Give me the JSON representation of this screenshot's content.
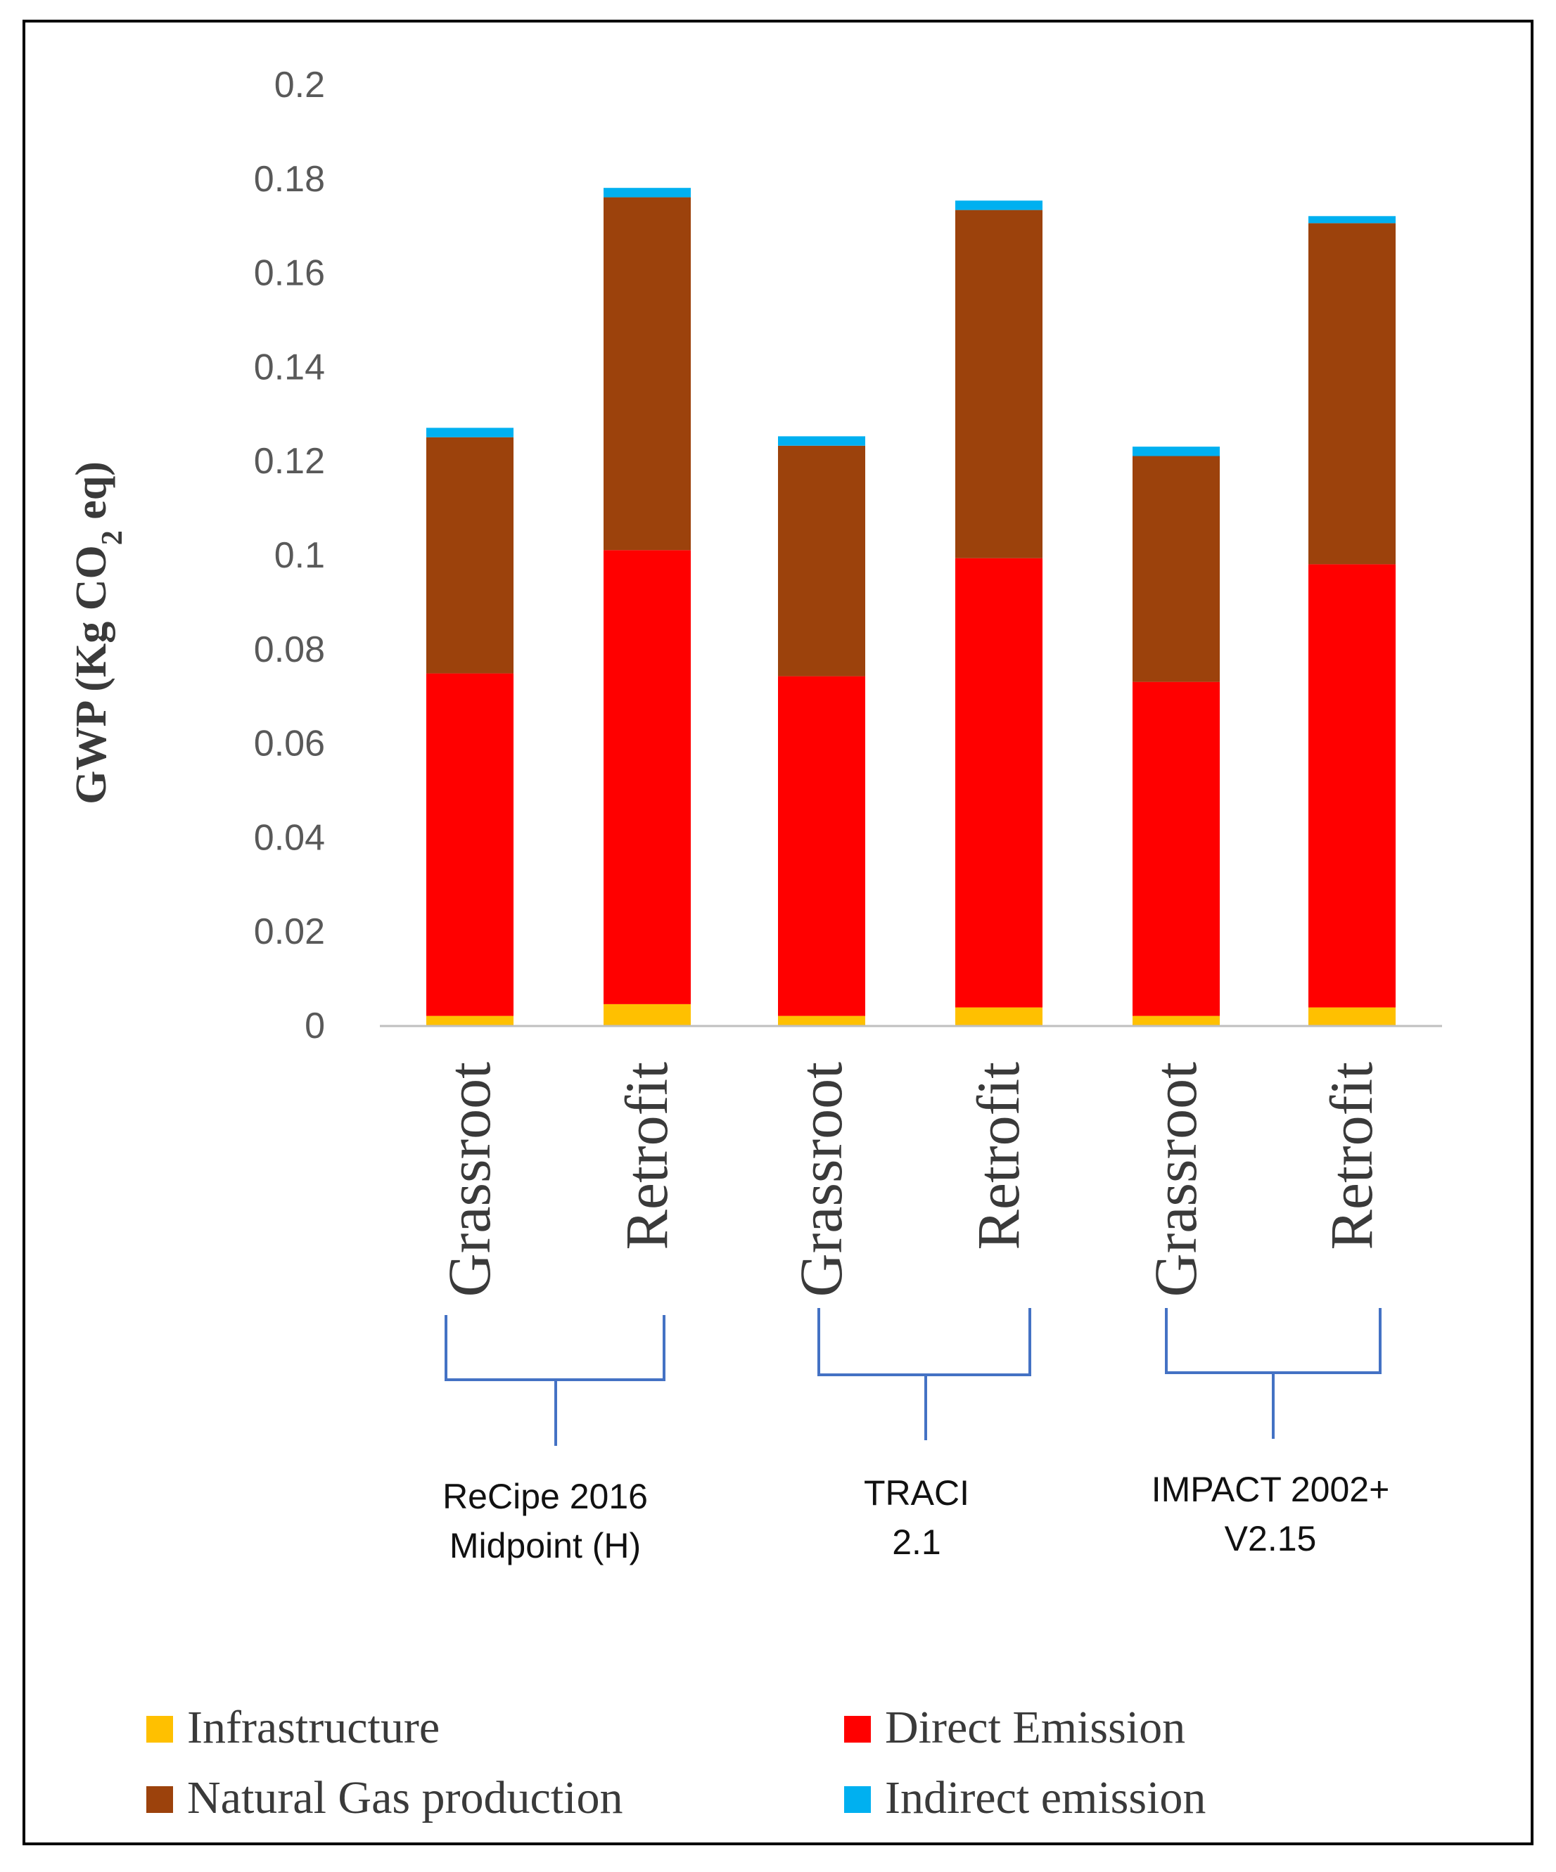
{
  "chart_data": {
    "type": "bar",
    "stacked": true,
    "title": "",
    "xlabel": "",
    "ylabel": "GWP (Kg CO2 eq)",
    "ylabel_parts": {
      "prefix": "GWP (Kg CO",
      "subscript": "2",
      "suffix": " eq)"
    },
    "ylim": [
      0,
      0.2
    ],
    "yticks": [
      0,
      0.02,
      0.04,
      0.06,
      0.08,
      0.1,
      0.12,
      0.14,
      0.16,
      0.18,
      0.2
    ],
    "ytick_labels": [
      "0",
      "0.02",
      "0.04",
      "0.06",
      "0.08",
      "0.1",
      "0.12",
      "0.14",
      "0.16",
      "0.18",
      "0.2"
    ],
    "grid": false,
    "categories": [
      "Grassroot",
      "Retrofit",
      "Grassroot",
      "Retrofit",
      "Grassroot",
      "Retrofit"
    ],
    "groups": [
      {
        "lines": [
          "ReCipe 2016",
          "Midpoint (H)"
        ],
        "categories": [
          0,
          1
        ]
      },
      {
        "lines": [
          "TRACI",
          "2.1"
        ],
        "categories": [
          2,
          3
        ]
      },
      {
        "lines": [
          "IMPACT 2002+",
          "V2.15"
        ],
        "categories": [
          4,
          5
        ]
      }
    ],
    "series": [
      {
        "name": "Infrastructure",
        "color": "#FFC000",
        "values": [
          0.002,
          0.0045,
          0.002,
          0.0038,
          0.002,
          0.0038
        ]
      },
      {
        "name": "Direct Emission",
        "color": "#FF0000",
        "values": [
          0.0728,
          0.0965,
          0.0722,
          0.0955,
          0.071,
          0.0942
        ]
      },
      {
        "name": "Natural Gas production",
        "color": "#9C420C",
        "values": [
          0.0502,
          0.075,
          0.049,
          0.074,
          0.048,
          0.0725
        ]
      },
      {
        "name": "Indirect emission",
        "color": "#00B0F0",
        "values": [
          0.002,
          0.002,
          0.002,
          0.002,
          0.002,
          0.0015
        ]
      }
    ],
    "legend": {
      "position": "bottom",
      "order": [
        "Infrastructure",
        "Direct Emission",
        "Natural Gas production",
        "Indirect emission"
      ]
    }
  }
}
